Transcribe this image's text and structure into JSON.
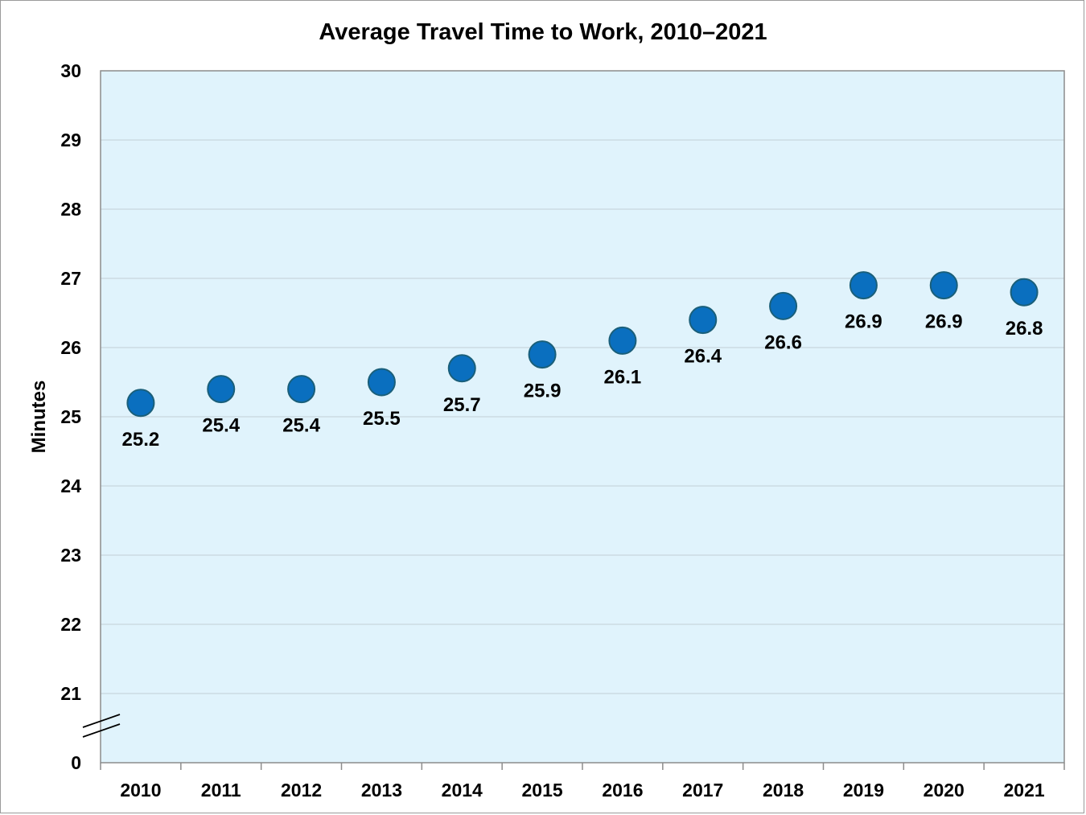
{
  "chart_data": {
    "type": "scatter",
    "title": "Average Travel Time to Work, 2010–2021",
    "xlabel": "",
    "ylabel": "Minutes",
    "categories": [
      "2010",
      "2011",
      "2012",
      "2013",
      "2014",
      "2015",
      "2016",
      "2017",
      "2018",
      "2019",
      "2020",
      "2021"
    ],
    "values": [
      25.2,
      25.4,
      25.4,
      25.5,
      25.7,
      25.9,
      26.1,
      26.4,
      26.6,
      26.9,
      26.9,
      26.8
    ],
    "data_labels": [
      "25.2",
      "25.4",
      "25.4",
      "25.5",
      "25.7",
      "25.9",
      "26.1",
      "26.4",
      "26.6",
      "26.9",
      "26.9",
      "26.8"
    ],
    "y_ticks": [
      "30",
      "29",
      "28",
      "27",
      "26",
      "25",
      "24",
      "23",
      "22",
      "21",
      "0"
    ],
    "ylim": [
      21,
      30
    ],
    "axis_break": "between 0 and 21",
    "grid": true,
    "legend": "none",
    "colors": {
      "plot_background": "#e0f3fc",
      "marker_fill": "#0a6fbf",
      "marker_stroke": "#1a5f7a",
      "gridline": "#c8d6dd",
      "axis": "#8c8c8c"
    }
  }
}
